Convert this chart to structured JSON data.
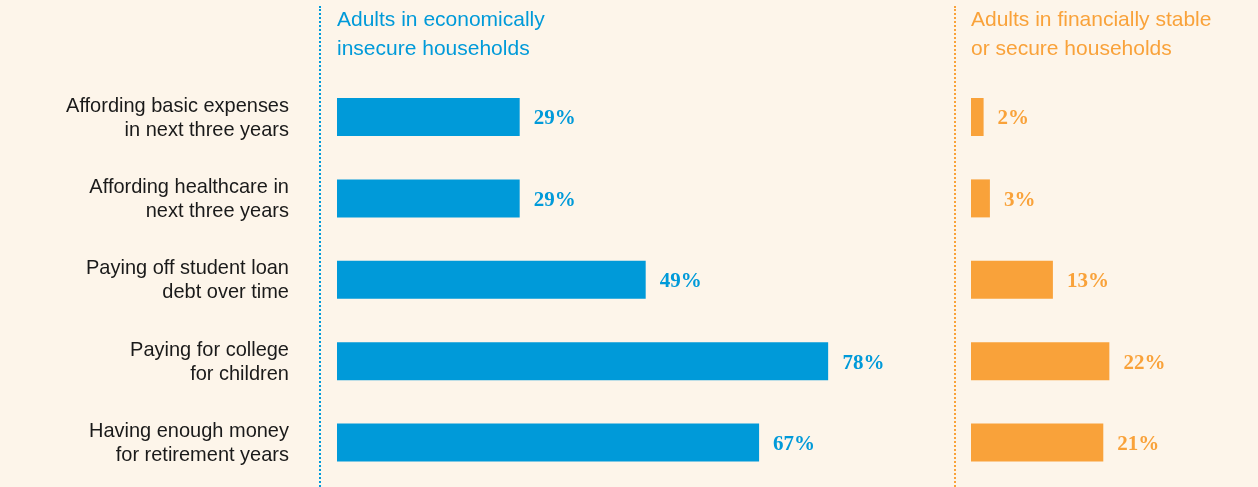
{
  "chart_data": [
    {
      "type": "bar",
      "orientation": "horizontal",
      "title": "Adults in economically insecure households",
      "categories": [
        "Affording basic expenses\nin next three years",
        "Affording healthcare in\nnext three years",
        "Paying off student loan\ndebt over time",
        "Paying for college\nfor children",
        "Having enough money\nfor retirement years"
      ],
      "values": [
        29,
        29,
        49,
        78,
        67
      ],
      "value_labels": [
        "29%",
        "29%",
        "49%",
        "78%",
        "67%"
      ],
      "color": "#009ad9",
      "tick_labels": "y"
    },
    {
      "type": "bar",
      "orientation": "horizontal",
      "title": "Adults in financially stable or secure households",
      "categories": [
        null,
        null,
        null,
        null,
        null
      ],
      "values": [
        2,
        3,
        13,
        22,
        21
      ],
      "value_labels": [
        "2%",
        "3%",
        "13%",
        "22%",
        "21%"
      ],
      "color": "#f9a23a"
    }
  ]
}
